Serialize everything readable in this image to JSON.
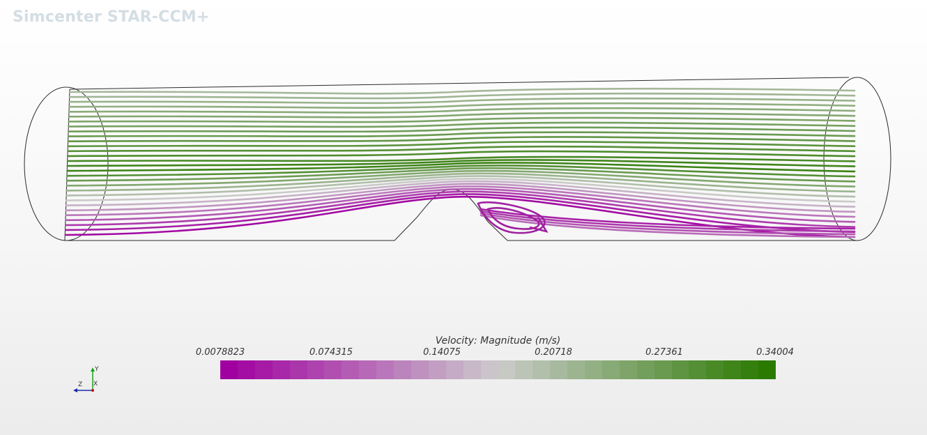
{
  "app": {
    "title": "Simcenter STAR-CCM+"
  },
  "legend": {
    "title": "Velocity: Magnitude (m/s)",
    "ticks": [
      "0.0078823",
      "0.074315",
      "0.14075",
      "0.20718",
      "0.27361",
      "0.34004"
    ],
    "min": 0.0078823,
    "max": 0.34004,
    "colors": {
      "low": "#a000a0",
      "mid": "#cccccc",
      "high": "#2a7a00"
    },
    "segments": 32
  },
  "axes": {
    "y": "Y",
    "z": "Z",
    "x": "X"
  },
  "scene": {
    "description_visible": false
  }
}
